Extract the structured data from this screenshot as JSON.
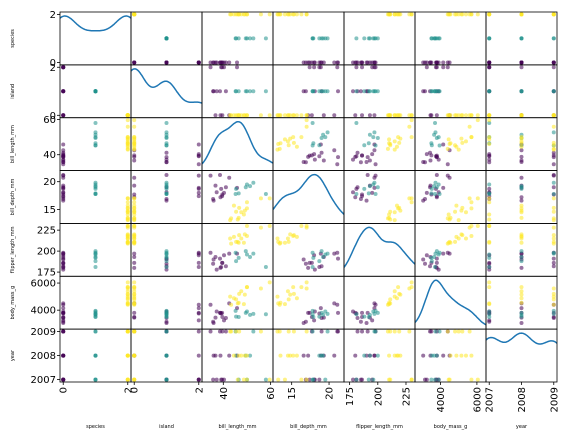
{
  "chart_data": {
    "type": "scatter_matrix",
    "color_by": "species",
    "colors": [
      "#440154",
      "#21918c",
      "#fde725"
    ],
    "diagonal_color": "#1f77b4",
    "variables": [
      {
        "name": "species",
        "lim": [
          -0.1,
          2.1
        ],
        "ticks": [
          0,
          2
        ],
        "values": [
          0,
          0,
          0,
          0,
          0,
          0,
          0,
          0,
          0,
          0,
          0,
          0,
          0,
          0,
          1,
          1,
          1,
          1,
          1,
          1,
          1,
          1,
          2,
          2,
          2,
          2,
          2,
          2,
          2,
          2,
          2,
          2,
          2,
          2,
          2,
          2
        ]
      },
      {
        "name": "island",
        "lim": [
          -0.1,
          2.1
        ],
        "ticks": [
          0,
          2
        ],
        "values": [
          2,
          2,
          2,
          0,
          0,
          1,
          1,
          1,
          2,
          0,
          1,
          0,
          2,
          1,
          1,
          1,
          1,
          1,
          1,
          1,
          1,
          1,
          0,
          0,
          0,
          0,
          0,
          0,
          0,
          0,
          0,
          0,
          0,
          0,
          0,
          0
        ]
      },
      {
        "name": "bill_length_mm",
        "lim": [
          31,
          61
        ],
        "ticks": [
          40,
          60
        ],
        "values": [
          39.1,
          39.5,
          40.3,
          36.7,
          38.8,
          35.9,
          41.1,
          38.6,
          34.6,
          42.5,
          37.2,
          39.6,
          45.8,
          35.7,
          46.5,
          50.0,
          51.3,
          45.4,
          52.7,
          45.2,
          49.5,
          58.0,
          46.1,
          50.0,
          48.7,
          50.0,
          47.6,
          46.5,
          45.4,
          46.7,
          43.3,
          59.6,
          49.1,
          42.9,
          55.9,
          44.5
        ]
      },
      {
        "name": "bill_depth_mm",
        "lim": [
          12.5,
          22
        ],
        "ticks": [
          15,
          20
        ],
        "values": [
          18.7,
          17.4,
          18.0,
          19.3,
          17.2,
          16.6,
          19.0,
          21.2,
          21.1,
          20.7,
          18.1,
          17.7,
          18.9,
          16.9,
          17.9,
          19.5,
          19.2,
          18.7,
          19.8,
          17.8,
          19.0,
          17.8,
          13.2,
          16.3,
          14.1,
          15.2,
          14.5,
          13.5,
          14.6,
          15.3,
          13.4,
          17.0,
          14.8,
          13.1,
          17.0,
          15.7
        ]
      },
      {
        "name": "flipper_length_mm",
        "lim": [
          170,
          233
        ],
        "ticks": [
          175,
          200,
          225
        ],
        "values": [
          181,
          186,
          195,
          193,
          180,
          190,
          182,
          191,
          198,
          197,
          178,
          186,
          197,
          185,
          192,
          196,
          193,
          188,
          197,
          198,
          200,
          181,
          211,
          230,
          210,
          218,
          215,
          210,
          211,
          219,
          209,
          230,
          220,
          215,
          228,
          217
        ]
      },
      {
        "name": "body_mass_g",
        "lim": [
          2600,
          6500
        ],
        "ticks": [
          4000,
          6000
        ],
        "values": [
          3750,
          3800,
          3250,
          3450,
          3800,
          3050,
          3425,
          3800,
          4400,
          4500,
          3900,
          3500,
          4150,
          3150,
          3500,
          3900,
          3650,
          3525,
          3725,
          3950,
          3800,
          3700,
          4500,
          5700,
          4450,
          5700,
          5400,
          4550,
          4800,
          5200,
          4400,
          6050,
          5150,
          5000,
          5600,
          4875
        ]
      },
      {
        "name": "year",
        "lim": [
          2006.9,
          2009.1
        ],
        "ticks": [
          2007,
          2008,
          2009
        ],
        "values": [
          2007,
          2007,
          2007,
          2008,
          2008,
          2008,
          2009,
          2009,
          2009,
          2008,
          2007,
          2009,
          2008,
          2007,
          2007,
          2007,
          2008,
          2008,
          2009,
          2009,
          2008,
          2007,
          2007,
          2007,
          2007,
          2008,
          2008,
          2008,
          2009,
          2009,
          2009,
          2007,
          2008,
          2009,
          2009,
          2008
        ]
      }
    ]
  }
}
